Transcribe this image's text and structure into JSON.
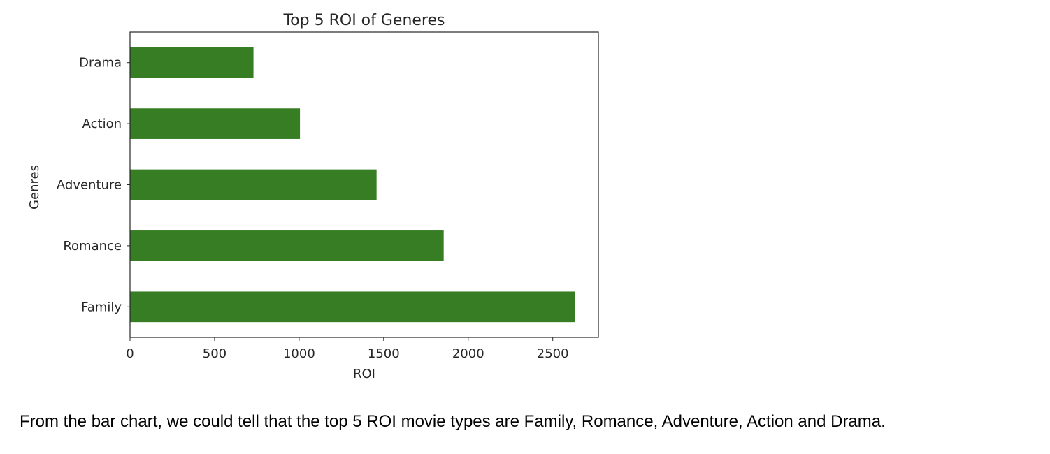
{
  "chart_data": {
    "type": "bar",
    "orientation": "horizontal",
    "title": "Top 5 ROI of Generes",
    "xlabel": "ROI",
    "ylabel": "Genres",
    "categories": [
      "Drama",
      "Action",
      "Adventure",
      "Romance",
      "Family"
    ],
    "values": [
      730,
      1005,
      1458,
      1855,
      2633
    ],
    "xlim": [
      0,
      2770
    ],
    "xticks": [
      "0",
      "500",
      "1000",
      "1500",
      "2000",
      "2500"
    ],
    "grid": false,
    "bar_color": "#367d23"
  },
  "caption": "From the bar chart, we could tell that the top 5 ROI movie types are Family, Romance, Adventure, Action and Drama."
}
